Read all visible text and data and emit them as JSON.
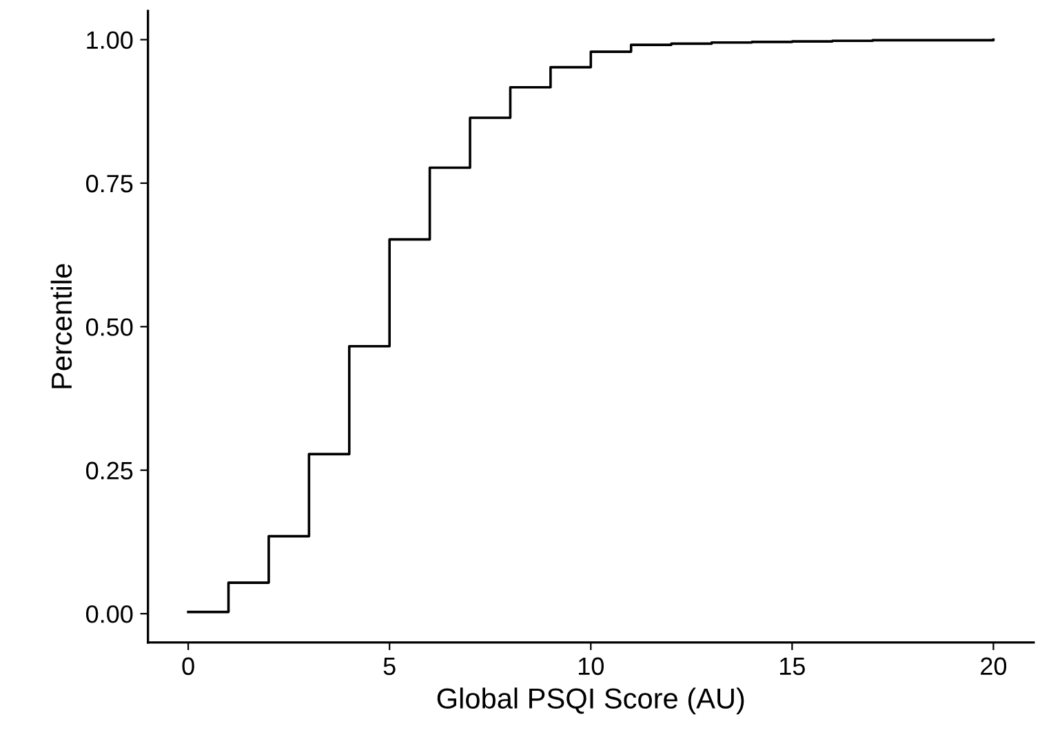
{
  "chart_data": {
    "type": "step",
    "xlabel": "Global PSQI Score (AU)",
    "ylabel": "Percentile",
    "x": [
      0,
      1,
      2,
      3,
      4,
      5,
      6,
      7,
      8,
      9,
      10,
      11,
      12,
      13,
      14,
      15,
      16,
      17,
      18,
      19,
      20
    ],
    "series": [
      {
        "color": "#000000",
        "values": [
          0.003,
          0.054,
          0.135,
          0.278,
          0.466,
          0.652,
          0.777,
          0.864,
          0.917,
          0.952,
          0.979,
          0.991,
          0.993,
          0.995,
          0.996,
          0.997,
          0.998,
          0.999,
          0.999,
          0.999,
          1.0
        ]
      }
    ],
    "xlim": [
      -1,
      21
    ],
    "xticks": [
      0,
      5,
      10,
      15,
      20
    ],
    "ylim": [
      -0.05,
      1.05
    ],
    "yticks": [
      {
        "value": 0,
        "label": "0.00"
      },
      {
        "value": 0.25,
        "label": "0.25"
      },
      {
        "value": 0.5,
        "label": "0.50"
      },
      {
        "value": 0.75,
        "label": "0.75"
      },
      {
        "value": 1,
        "label": "1.00"
      }
    ],
    "grid": false,
    "marker": "none",
    "line_style": "solid"
  }
}
